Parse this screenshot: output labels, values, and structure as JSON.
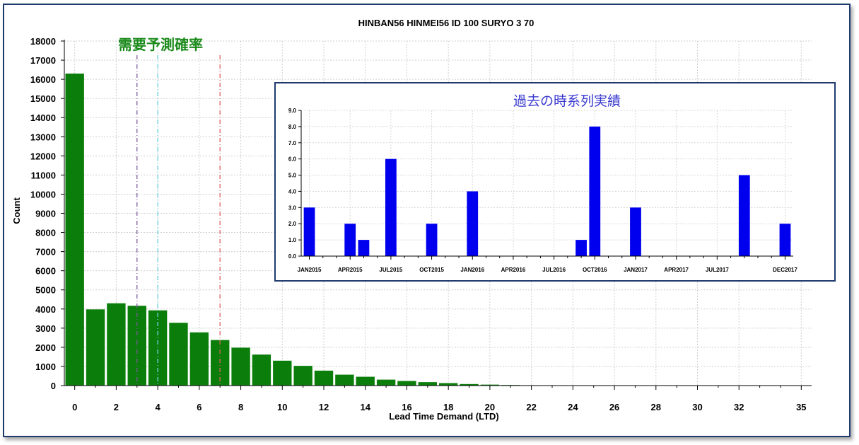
{
  "chart_data": [
    {
      "type": "bar",
      "title": "HINBAN56 HINMEI56 ID 100 SURYO 3 70",
      "xlabel": "Lead Time Demand (LTD)",
      "ylabel": "Count",
      "annotation": "需要予測確率",
      "x": [
        0,
        1,
        2,
        3,
        4,
        5,
        6,
        7,
        8,
        9,
        10,
        11,
        12,
        13,
        14,
        15,
        16,
        17,
        18,
        19,
        20,
        21,
        22,
        23,
        24,
        25,
        26,
        27,
        28,
        29,
        30,
        31,
        32,
        33,
        34,
        35
      ],
      "values": [
        16300,
        3980,
        4300,
        4170,
        3930,
        3280,
        2780,
        2380,
        1980,
        1620,
        1300,
        1030,
        780,
        570,
        460,
        310,
        240,
        180,
        130,
        80,
        50,
        30,
        20,
        10,
        0,
        0,
        0,
        0,
        0,
        0,
        0,
        0,
        0,
        0,
        0,
        0
      ],
      "xticks": [
        0,
        2,
        4,
        6,
        8,
        10,
        12,
        14,
        16,
        18,
        20,
        22,
        24,
        26,
        28,
        30,
        32,
        35
      ],
      "ylim": [
        0,
        18000
      ],
      "yticks": [
        0,
        1000,
        2000,
        3000,
        4000,
        5000,
        6000,
        7000,
        8000,
        9000,
        10000,
        11000,
        12000,
        13000,
        14000,
        15000,
        16000,
        17000,
        18000
      ],
      "vlines": [
        {
          "x": 3,
          "color": "#7a5a9a"
        },
        {
          "x": 4,
          "color": "#6ad0e0"
        },
        {
          "x": 7,
          "color": "#e06060"
        }
      ],
      "bar_color": "#0a7d0a",
      "grid": true
    },
    {
      "type": "bar",
      "title": "過去の時系列実績",
      "categories": [
        "JAN2015",
        "FEB2015",
        "MAR2015",
        "APR2015",
        "MAY2015",
        "JUN2015",
        "JUL2015",
        "AUG2015",
        "SEP2015",
        "OCT2015",
        "NOV2015",
        "DEC2015",
        "JAN2016",
        "FEB2016",
        "MAR2016",
        "APR2016",
        "MAY2016",
        "JUN2016",
        "JUL2016",
        "AUG2016",
        "SEP2016",
        "OCT2016",
        "NOV2016",
        "DEC2016",
        "JAN2017",
        "FEB2017",
        "MAR2017",
        "APR2017",
        "MAY2017",
        "JUN2017",
        "JUL2017",
        "AUG2017",
        "SEP2017",
        "OCT2017",
        "NOV2017",
        "DEC2017"
      ],
      "values": [
        3,
        0,
        0,
        2,
        1,
        0,
        6,
        0,
        0,
        2,
        0,
        0,
        4,
        0,
        0,
        0,
        0,
        0,
        0,
        0,
        1,
        8,
        0,
        0,
        3,
        0,
        0,
        0,
        0,
        0,
        0,
        0,
        5,
        0,
        0,
        2
      ],
      "xtick_labels": [
        "JAN2015",
        "APR2015",
        "JUL2015",
        "OCT2015",
        "JAN2016",
        "APR2016",
        "JUL2016",
        "OCT2016",
        "JAN2017",
        "APR2017",
        "JUL2017",
        "DEC2017"
      ],
      "ylim": [
        0,
        9
      ],
      "yticks": [
        "0.0",
        "1.0",
        "2.0",
        "3.0",
        "4.0",
        "5.0",
        "6.0",
        "7.0",
        "8.0",
        "9.0"
      ],
      "bar_color": "#0000ee",
      "grid": true
    }
  ]
}
